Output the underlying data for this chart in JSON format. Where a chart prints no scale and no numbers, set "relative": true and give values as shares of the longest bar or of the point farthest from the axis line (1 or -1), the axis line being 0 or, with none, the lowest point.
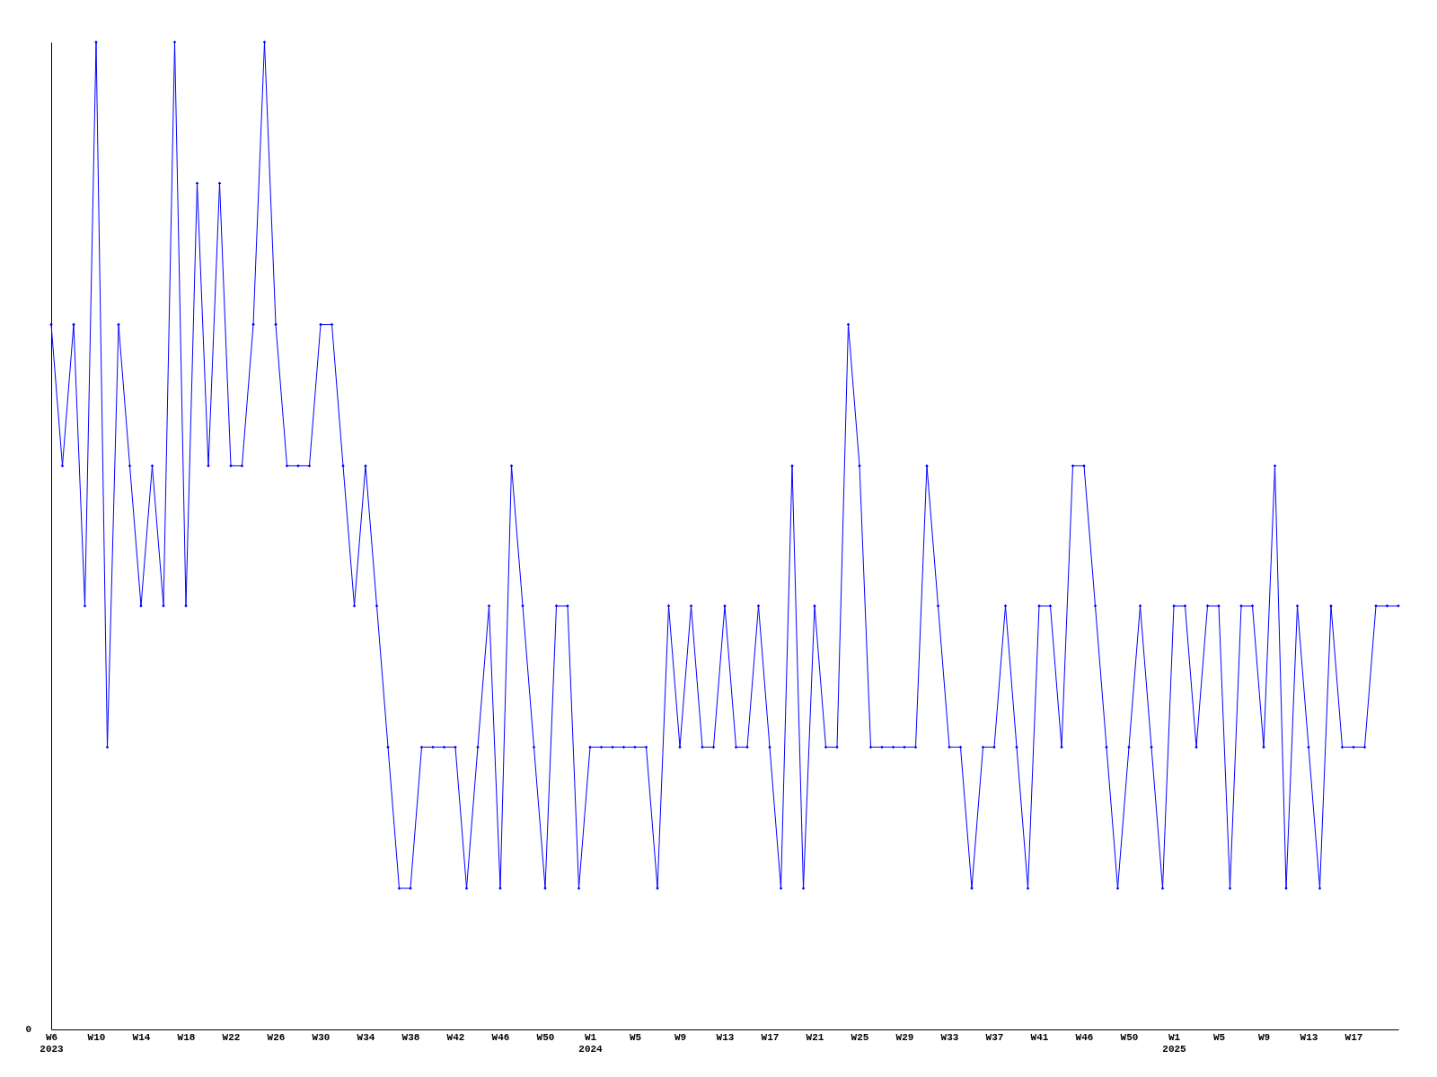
{
  "chart_data": {
    "type": "line",
    "relative": true,
    "marker": "diamond",
    "line_style": "solid",
    "grid": false,
    "categories": [
      "W6\n2023",
      null,
      null,
      null,
      "W10",
      null,
      null,
      null,
      "W14",
      null,
      null,
      null,
      "W18",
      null,
      null,
      null,
      "W22",
      null,
      null,
      null,
      "W26",
      null,
      null,
      null,
      "W30",
      null,
      null,
      null,
      "W34",
      null,
      null,
      null,
      "W38",
      null,
      null,
      null,
      "W42",
      null,
      null,
      null,
      "W46",
      null,
      null,
      null,
      "W50",
      null,
      null,
      null,
      "W1\n2024",
      null,
      null,
      null,
      "W5",
      null,
      null,
      null,
      "W9",
      null,
      null,
      null,
      "W13",
      null,
      null,
      null,
      "W17",
      null,
      null,
      null,
      "W21",
      null,
      null,
      null,
      "W25",
      null,
      null,
      null,
      "W29",
      null,
      null,
      null,
      "W33",
      null,
      null,
      null,
      "W37",
      null,
      null,
      null,
      "W41",
      null,
      null,
      null,
      "W46",
      null,
      null,
      null,
      "W50",
      null,
      null,
      null,
      "W1\n2025",
      null,
      null,
      null,
      "W5",
      null,
      null,
      null,
      "W9",
      null,
      null,
      null,
      "W13",
      null,
      null,
      null,
      "W17",
      null,
      null,
      null,
      null
    ],
    "series": [
      {
        "color": "#0000ff",
        "values": [
          0.714,
          0.571,
          0.714,
          0.429,
          1,
          0.286,
          0.714,
          0.571,
          0.429,
          0.571,
          0.429,
          1,
          0.429,
          0.857,
          0.571,
          0.857,
          0.571,
          0.571,
          0.714,
          1,
          0.714,
          0.571,
          0.571,
          0.571,
          0.714,
          0.714,
          0.571,
          0.429,
          0.571,
          0.429,
          0.286,
          0.143,
          0.143,
          0.286,
          0.286,
          0.286,
          0.286,
          0.143,
          0.286,
          0.429,
          0.143,
          0.571,
          0.429,
          0.286,
          0.143,
          0.429,
          0.429,
          0.143,
          0.286,
          0.286,
          0.286,
          0.286,
          0.286,
          0.286,
          0.143,
          0.429,
          0.286,
          0.429,
          0.286,
          0.286,
          0.429,
          0.286,
          0.286,
          0.429,
          0.286,
          0.143,
          0.571,
          0.143,
          0.429,
          0.286,
          0.286,
          0.714,
          0.571,
          0.286,
          0.286,
          0.286,
          0.286,
          0.286,
          0.571,
          0.429,
          0.286,
          0.286,
          0.143,
          0.286,
          0.286,
          0.429,
          0.286,
          0.143,
          0.429,
          0.429,
          0.286,
          0.571,
          0.571,
          0.429,
          0.286,
          0.143,
          0.286,
          0.429,
          0.286,
          0.143,
          0.429,
          0.429,
          0.286,
          0.429,
          0.429,
          0.143,
          0.429,
          0.429,
          0.286,
          0.571,
          0.143,
          0.429,
          0.286,
          0.143,
          0.429,
          0.286,
          0.286,
          0.286,
          0.429,
          0.429,
          0.429
        ]
      }
    ],
    "annotations": [
      "0"
    ]
  }
}
